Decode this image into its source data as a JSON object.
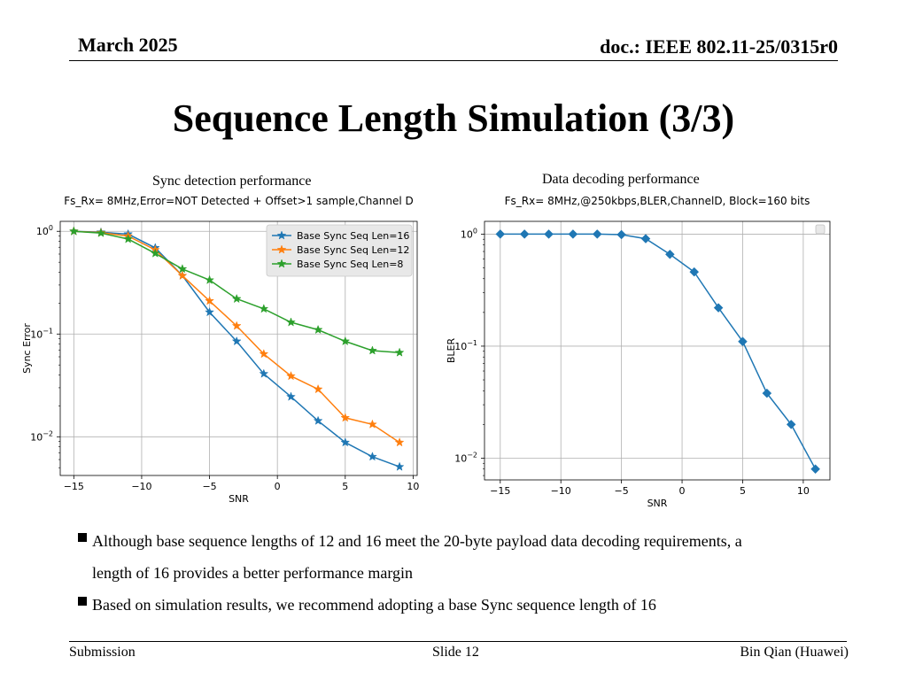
{
  "header": {
    "date": "March 2025",
    "doc": "doc.: IEEE 802.11-25/0315r0"
  },
  "title": "Sequence Length Simulation (3/3)",
  "captions": {
    "left": "Sync detection performance",
    "right": "Data decoding performance"
  },
  "bullets": [
    {
      "line1": "Although base sequence lengths of 12 and 16 meet the 20-byte payload data decoding requirements, a",
      "line2": "length of 16 provides a better performance margin"
    },
    {
      "line1": "Based on simulation results, we recommend adopting a base Sync sequence length of 16",
      "line2": ""
    }
  ],
  "footer": {
    "left": "Submission",
    "center": "Slide 12",
    "right": "Bin Qian (Huawei)"
  },
  "chart_data": [
    {
      "type": "line",
      "title": "Fs_Rx= 8MHz,Error=NOT Detected + Offset>1 sample,Channel D",
      "xlabel": "SNR",
      "ylabel": "Sync Error",
      "yscale": "log",
      "xlim": [
        -16,
        10.3
      ],
      "ylim": [
        0.0042,
        1.25
      ],
      "xticks": [
        -15,
        -10,
        -5,
        0,
        5,
        10
      ],
      "xtick_labels": [
        "−15",
        "−10",
        "−5",
        "0",
        "5",
        "10"
      ],
      "yticks": [
        0.01,
        0.1,
        1
      ],
      "ytick_labels": [
        {
          "base": "10",
          "exp": "−2"
        },
        {
          "base": "10",
          "exp": "−1"
        },
        {
          "base": "10",
          "exp": "0"
        }
      ],
      "grid": true,
      "legend": "top-right",
      "marker": "star",
      "x": [
        -15,
        -13,
        -11,
        -9,
        -7,
        -5,
        -3,
        -1,
        1,
        3,
        5,
        7,
        9
      ],
      "series": [
        {
          "name": "Base Sync Seq Len=16",
          "color": "#1f77b4",
          "values": [
            1.0,
            0.98,
            0.94,
            0.69,
            0.37,
            0.163,
            0.085,
            0.041,
            0.0245,
            0.0143,
            0.0088,
            0.0064,
            0.0051
          ]
        },
        {
          "name": "Base Sync Seq Len=12",
          "color": "#ff7f0e",
          "values": [
            1.0,
            0.97,
            0.9,
            0.66,
            0.37,
            0.21,
            0.12,
            0.064,
            0.039,
            0.029,
            0.0153,
            0.0132,
            0.0088
          ]
        },
        {
          "name": "Base Sync Seq Len=8",
          "color": "#2ca02c",
          "values": [
            1.0,
            0.96,
            0.84,
            0.61,
            0.43,
            0.335,
            0.22,
            0.176,
            0.13,
            0.11,
            0.085,
            0.069,
            0.066
          ]
        }
      ]
    },
    {
      "type": "line",
      "title": "Fs_Rx= 8MHz,@250kbps,BLER,ChannelD, Block=160 bits",
      "xlabel": "SNR",
      "ylabel": "BLER",
      "yscale": "log",
      "xlim": [
        -16.3,
        12.2
      ],
      "ylim": [
        0.0064,
        1.3
      ],
      "xticks": [
        -15,
        -10,
        -5,
        0,
        5,
        10
      ],
      "xtick_labels": [
        "−15",
        "−10",
        "−5",
        "0",
        "5",
        "10"
      ],
      "yticks": [
        0.01,
        0.1,
        1
      ],
      "ytick_labels": [
        {
          "base": "10",
          "exp": "−2"
        },
        {
          "base": "10",
          "exp": "−1"
        },
        {
          "base": "10",
          "exp": "0"
        }
      ],
      "grid": true,
      "legend": "top-right",
      "marker": "diamond",
      "x": [
        -15,
        -13,
        -11,
        -9,
        -7,
        -5,
        -3,
        -1,
        1,
        3,
        5,
        7,
        9,
        11
      ],
      "series": [
        {
          "name": "",
          "color": "#1f77b4",
          "values": [
            1.0,
            1.0,
            1.0,
            1.0,
            1.0,
            0.99,
            0.91,
            0.66,
            0.46,
            0.22,
            0.11,
            0.038,
            0.02,
            0.008
          ]
        }
      ]
    }
  ]
}
